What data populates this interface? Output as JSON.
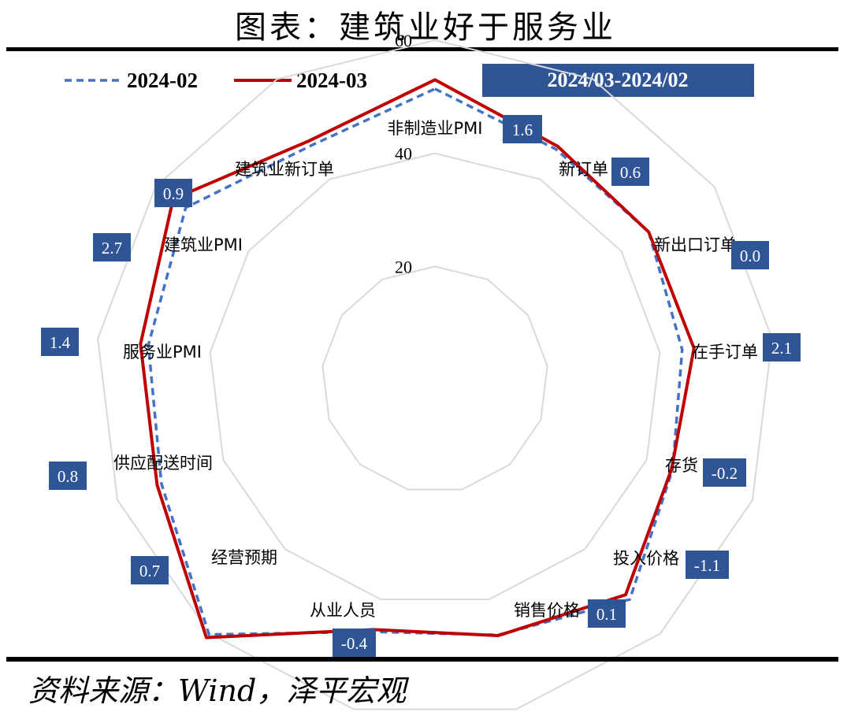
{
  "title": "图表：建筑业好于服务业",
  "source": "资料来源：Wind，泽平宏观",
  "header_box": "2024/03-2024/02",
  "colors": {
    "series_feb": "#4472C4",
    "series_mar": "#C00000",
    "box": "#2F5597",
    "grid": "#D9D9D9"
  },
  "chart_data": {
    "type": "radar",
    "categories": [
      "非制造业PMI",
      "新订单",
      "新出口订单",
      "在手订单",
      "存货",
      "投入价格",
      "销售价格",
      "从业人员",
      "经营预期",
      "供应配送时间",
      "服务业PMI",
      "建筑业PMI",
      "建筑业新订单"
    ],
    "r_ticks": [
      "20",
      "40",
      "60"
    ],
    "rlim": [
      0,
      60
    ],
    "series": [
      {
        "name": "2024-02",
        "style": "dashed",
        "values": [
          51.4,
          46.0,
          45.9,
          44.0,
          44.9,
          51.9,
          46.5,
          45.9,
          60.2,
          51.7,
          51.0,
          53.5,
          46.8
        ]
      },
      {
        "name": "2024-03",
        "style": "solid",
        "values": [
          53.0,
          46.6,
          45.9,
          46.1,
          44.7,
          50.8,
          46.6,
          45.5,
          60.9,
          52.5,
          52.4,
          56.2,
          47.7
        ]
      }
    ],
    "diff_labels": [
      "1.6",
      "0.6",
      "0.0",
      "2.1",
      "-0.2",
      "-1.1",
      "0.1",
      "-0.4",
      "0.7",
      "0.8",
      "1.4",
      "2.7",
      "0.9"
    ]
  }
}
